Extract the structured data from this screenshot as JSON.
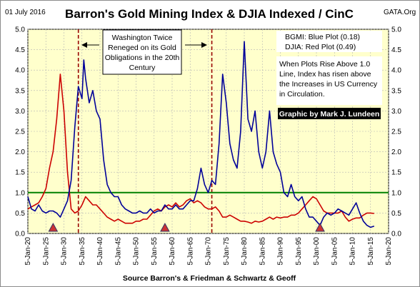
{
  "header": {
    "date": "01 July 2016",
    "title": "Barron's Gold Mining Index & DJIA Indexed / CinC",
    "site": "GATA.Org"
  },
  "annotations": {
    "callout_lines": [
      "Washington Twice",
      "Reneged on its Gold",
      "Obligations in the 20th",
      "Century"
    ],
    "legend_lines": [
      "BGMI: Blue Plot (0.18)",
      "DJIA: Red Plot    (0.49)"
    ],
    "note_lines": [
      "When Plots Rise Above 1.0",
      "Line, Index has risen above",
      "the Increases in US Currency",
      "in Circulation."
    ],
    "credit": "Graphic by Mark J. Lundeen"
  },
  "footer": {
    "source": "Source Barron's & Friedman & Schwartz & Geoff"
  },
  "colors": {
    "plot_background": "#ffffcc",
    "blue_plot": "#000099",
    "red_plot": "#cc0000",
    "reference_line": "#008000",
    "marker": "#cc3333",
    "vline": "#990000"
  },
  "chart_data": {
    "type": "line",
    "title": "Barron's Gold Mining Index & DJIA Indexed / CinC",
    "xlabel": "",
    "ylabel": "",
    "x_range": [
      1920,
      2020
    ],
    "ylim": [
      0,
      5
    ],
    "y_ticks": [
      "0.0",
      "0.5",
      "1.0",
      "1.5",
      "2.0",
      "2.5",
      "3.0",
      "3.5",
      "4.0",
      "4.5",
      "5.0"
    ],
    "x_ticks": [
      "5-Jan-20",
      "5-Jan-25",
      "5-Jan-30",
      "5-Jan-35",
      "5-Jan-40",
      "5-Jan-45",
      "5-Jan-50",
      "5-Jan-55",
      "5-Jan-60",
      "5-Jan-65",
      "5-Jan-70",
      "5-Jan-75",
      "5-Jan-80",
      "5-Jan-85",
      "5-Jan-90",
      "5-Jan-95",
      "5-Jan-00",
      "5-Jan-05",
      "5-Jan-10",
      "5-Jan-15",
      "5-Jan-20"
    ],
    "grid": true,
    "reference_line": 1.0,
    "vertical_lines": [
      1934,
      1971
    ],
    "markers": [
      1927,
      1958,
      2001
    ],
    "series": [
      {
        "name": "BGMI: Blue Plot (0.18)",
        "color": "#000099",
        "points": [
          [
            1920,
            0.9
          ],
          [
            1921,
            0.6
          ],
          [
            1922,
            0.55
          ],
          [
            1923,
            0.7
          ],
          [
            1924,
            0.55
          ],
          [
            1925,
            0.5
          ],
          [
            1926,
            0.55
          ],
          [
            1927,
            0.55
          ],
          [
            1928,
            0.5
          ],
          [
            1929,
            0.4
          ],
          [
            1930,
            0.6
          ],
          [
            1931,
            0.8
          ],
          [
            1932,
            1.3
          ],
          [
            1933,
            2.6
          ],
          [
            1934,
            3.6
          ],
          [
            1935,
            3.3
          ],
          [
            1935.5,
            4.25
          ],
          [
            1936,
            3.8
          ],
          [
            1937,
            3.2
          ],
          [
            1938,
            3.5
          ],
          [
            1939,
            3.0
          ],
          [
            1940,
            2.8
          ],
          [
            1941,
            1.8
          ],
          [
            1942,
            1.2
          ],
          [
            1943,
            1.0
          ],
          [
            1944,
            0.9
          ],
          [
            1945,
            0.9
          ],
          [
            1946,
            0.7
          ],
          [
            1947,
            0.6
          ],
          [
            1948,
            0.55
          ],
          [
            1949,
            0.5
          ],
          [
            1950,
            0.5
          ],
          [
            1951,
            0.55
          ],
          [
            1952,
            0.5
          ],
          [
            1953,
            0.5
          ],
          [
            1954,
            0.6
          ],
          [
            1955,
            0.5
          ],
          [
            1956,
            0.55
          ],
          [
            1957,
            0.55
          ],
          [
            1958,
            0.7
          ],
          [
            1959,
            0.6
          ],
          [
            1960,
            0.6
          ],
          [
            1961,
            0.7
          ],
          [
            1962,
            0.6
          ],
          [
            1963,
            0.6
          ],
          [
            1964,
            0.7
          ],
          [
            1965,
            0.8
          ],
          [
            1966,
            0.8
          ],
          [
            1967,
            1.1
          ],
          [
            1968,
            1.6
          ],
          [
            1969,
            1.2
          ],
          [
            1970,
            1.0
          ],
          [
            1971,
            1.3
          ],
          [
            1972,
            1.2
          ],
          [
            1973,
            2.2
          ],
          [
            1974,
            3.9
          ],
          [
            1975,
            3.2
          ],
          [
            1976,
            2.2
          ],
          [
            1977,
            1.8
          ],
          [
            1978,
            1.6
          ],
          [
            1979,
            2.5
          ],
          [
            1980,
            4.7
          ],
          [
            1981,
            2.8
          ],
          [
            1982,
            2.5
          ],
          [
            1983,
            3.0
          ],
          [
            1984,
            2.0
          ],
          [
            1985,
            1.6
          ],
          [
            1986,
            2.0
          ],
          [
            1987,
            3.0
          ],
          [
            1988,
            2.0
          ],
          [
            1989,
            1.7
          ],
          [
            1990,
            1.5
          ],
          [
            1991,
            1.0
          ],
          [
            1992,
            0.9
          ],
          [
            1993,
            1.2
          ],
          [
            1994,
            0.9
          ],
          [
            1995,
            0.8
          ],
          [
            1996,
            0.9
          ],
          [
            1997,
            0.6
          ],
          [
            1998,
            0.4
          ],
          [
            1999,
            0.4
          ],
          [
            2000,
            0.3
          ],
          [
            2001,
            0.2
          ],
          [
            2002,
            0.4
          ],
          [
            2003,
            0.5
          ],
          [
            2004,
            0.45
          ],
          [
            2005,
            0.5
          ],
          [
            2006,
            0.6
          ],
          [
            2007,
            0.55
          ],
          [
            2008,
            0.5
          ],
          [
            2009,
            0.45
          ],
          [
            2010,
            0.6
          ],
          [
            2011,
            0.75
          ],
          [
            2012,
            0.5
          ],
          [
            2013,
            0.3
          ],
          [
            2014,
            0.2
          ],
          [
            2015,
            0.15
          ],
          [
            2016,
            0.18
          ]
        ]
      },
      {
        "name": "DJIA: Red Plot (0.49)",
        "color": "#cc0000",
        "points": [
          [
            1920,
            0.6
          ],
          [
            1921,
            0.65
          ],
          [
            1922,
            0.7
          ],
          [
            1923,
            0.75
          ],
          [
            1924,
            0.9
          ],
          [
            1925,
            1.1
          ],
          [
            1926,
            1.6
          ],
          [
            1927,
            2.0
          ],
          [
            1928,
            2.8
          ],
          [
            1929,
            3.9
          ],
          [
            1930,
            3.0
          ],
          [
            1931,
            1.5
          ],
          [
            1932,
            0.6
          ],
          [
            1933,
            0.5
          ],
          [
            1934,
            0.55
          ],
          [
            1935,
            0.7
          ],
          [
            1936,
            0.9
          ],
          [
            1937,
            0.8
          ],
          [
            1938,
            0.7
          ],
          [
            1939,
            0.7
          ],
          [
            1940,
            0.6
          ],
          [
            1941,
            0.5
          ],
          [
            1942,
            0.4
          ],
          [
            1943,
            0.35
          ],
          [
            1944,
            0.3
          ],
          [
            1945,
            0.35
          ],
          [
            1946,
            0.3
          ],
          [
            1947,
            0.25
          ],
          [
            1948,
            0.25
          ],
          [
            1949,
            0.25
          ],
          [
            1950,
            0.3
          ],
          [
            1951,
            0.3
          ],
          [
            1952,
            0.35
          ],
          [
            1953,
            0.35
          ],
          [
            1954,
            0.45
          ],
          [
            1955,
            0.55
          ],
          [
            1956,
            0.6
          ],
          [
            1957,
            0.55
          ],
          [
            1958,
            0.65
          ],
          [
            1959,
            0.7
          ],
          [
            1960,
            0.65
          ],
          [
            1961,
            0.75
          ],
          [
            1962,
            0.65
          ],
          [
            1963,
            0.7
          ],
          [
            1964,
            0.8
          ],
          [
            1965,
            0.85
          ],
          [
            1966,
            0.75
          ],
          [
            1967,
            0.8
          ],
          [
            1968,
            0.75
          ],
          [
            1969,
            0.65
          ],
          [
            1970,
            0.6
          ],
          [
            1971,
            0.6
          ],
          [
            1972,
            0.65
          ],
          [
            1973,
            0.55
          ],
          [
            1974,
            0.4
          ],
          [
            1975,
            0.4
          ],
          [
            1976,
            0.45
          ],
          [
            1977,
            0.4
          ],
          [
            1978,
            0.35
          ],
          [
            1979,
            0.3
          ],
          [
            1980,
            0.3
          ],
          [
            1981,
            0.28
          ],
          [
            1982,
            0.25
          ],
          [
            1983,
            0.3
          ],
          [
            1984,
            0.28
          ],
          [
            1985,
            0.3
          ],
          [
            1986,
            0.35
          ],
          [
            1987,
            0.4
          ],
          [
            1988,
            0.35
          ],
          [
            1989,
            0.4
          ],
          [
            1990,
            0.38
          ],
          [
            1991,
            0.4
          ],
          [
            1992,
            0.4
          ],
          [
            1993,
            0.45
          ],
          [
            1994,
            0.45
          ],
          [
            1995,
            0.5
          ],
          [
            1996,
            0.6
          ],
          [
            1997,
            0.7
          ],
          [
            1998,
            0.8
          ],
          [
            1999,
            0.9
          ],
          [
            2000,
            0.85
          ],
          [
            2001,
            0.7
          ],
          [
            2002,
            0.55
          ],
          [
            2003,
            0.5
          ],
          [
            2004,
            0.5
          ],
          [
            2005,
            0.5
          ],
          [
            2006,
            0.5
          ],
          [
            2007,
            0.55
          ],
          [
            2008,
            0.4
          ],
          [
            2009,
            0.3
          ],
          [
            2010,
            0.35
          ],
          [
            2011,
            0.38
          ],
          [
            2012,
            0.38
          ],
          [
            2013,
            0.45
          ],
          [
            2014,
            0.5
          ],
          [
            2015,
            0.5
          ],
          [
            2016,
            0.49
          ]
        ]
      }
    ]
  }
}
